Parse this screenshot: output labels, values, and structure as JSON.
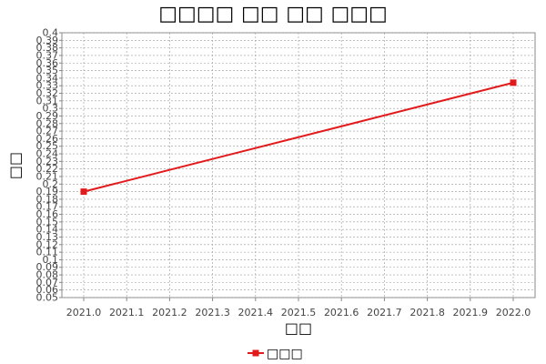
{
  "chart_data": {
    "type": "line",
    "title": "□□□□ □□ □□ □□□",
    "xlabel": "□□",
    "ylabel": "□□",
    "xlim": [
      2021.0,
      2022.0
    ],
    "ylim": [
      0.05,
      0.4
    ],
    "x_ticks": [
      "2021.0",
      "2021.1",
      "2021.2",
      "2021.3",
      "2021.4",
      "2021.5",
      "2021.6",
      "2021.7",
      "2021.8",
      "2021.9",
      "2022.0"
    ],
    "y_ticks": [
      "0.05",
      "0.06",
      "0.07",
      "0.08",
      "0.09",
      "0.1",
      "0.11",
      "0.12",
      "0.13",
      "0.14",
      "0.15",
      "0.16",
      "0.17",
      "0.18",
      "0.19",
      "0.2",
      "0.21",
      "0.22",
      "0.23",
      "0.24",
      "0.25",
      "0.26",
      "0.27",
      "0.28",
      "0.29",
      "0.3",
      "0.31",
      "0.32",
      "0.33",
      "0.34",
      "0.35",
      "0.36",
      "0.37",
      "0.38",
      "0.39",
      "0.4"
    ],
    "grid": true,
    "legend_position": "bottom",
    "series": [
      {
        "name": "□□□",
        "color": "#e31a1c",
        "x": [
          2021.0,
          2022.0
        ],
        "y": [
          0.19,
          0.334
        ]
      }
    ]
  }
}
